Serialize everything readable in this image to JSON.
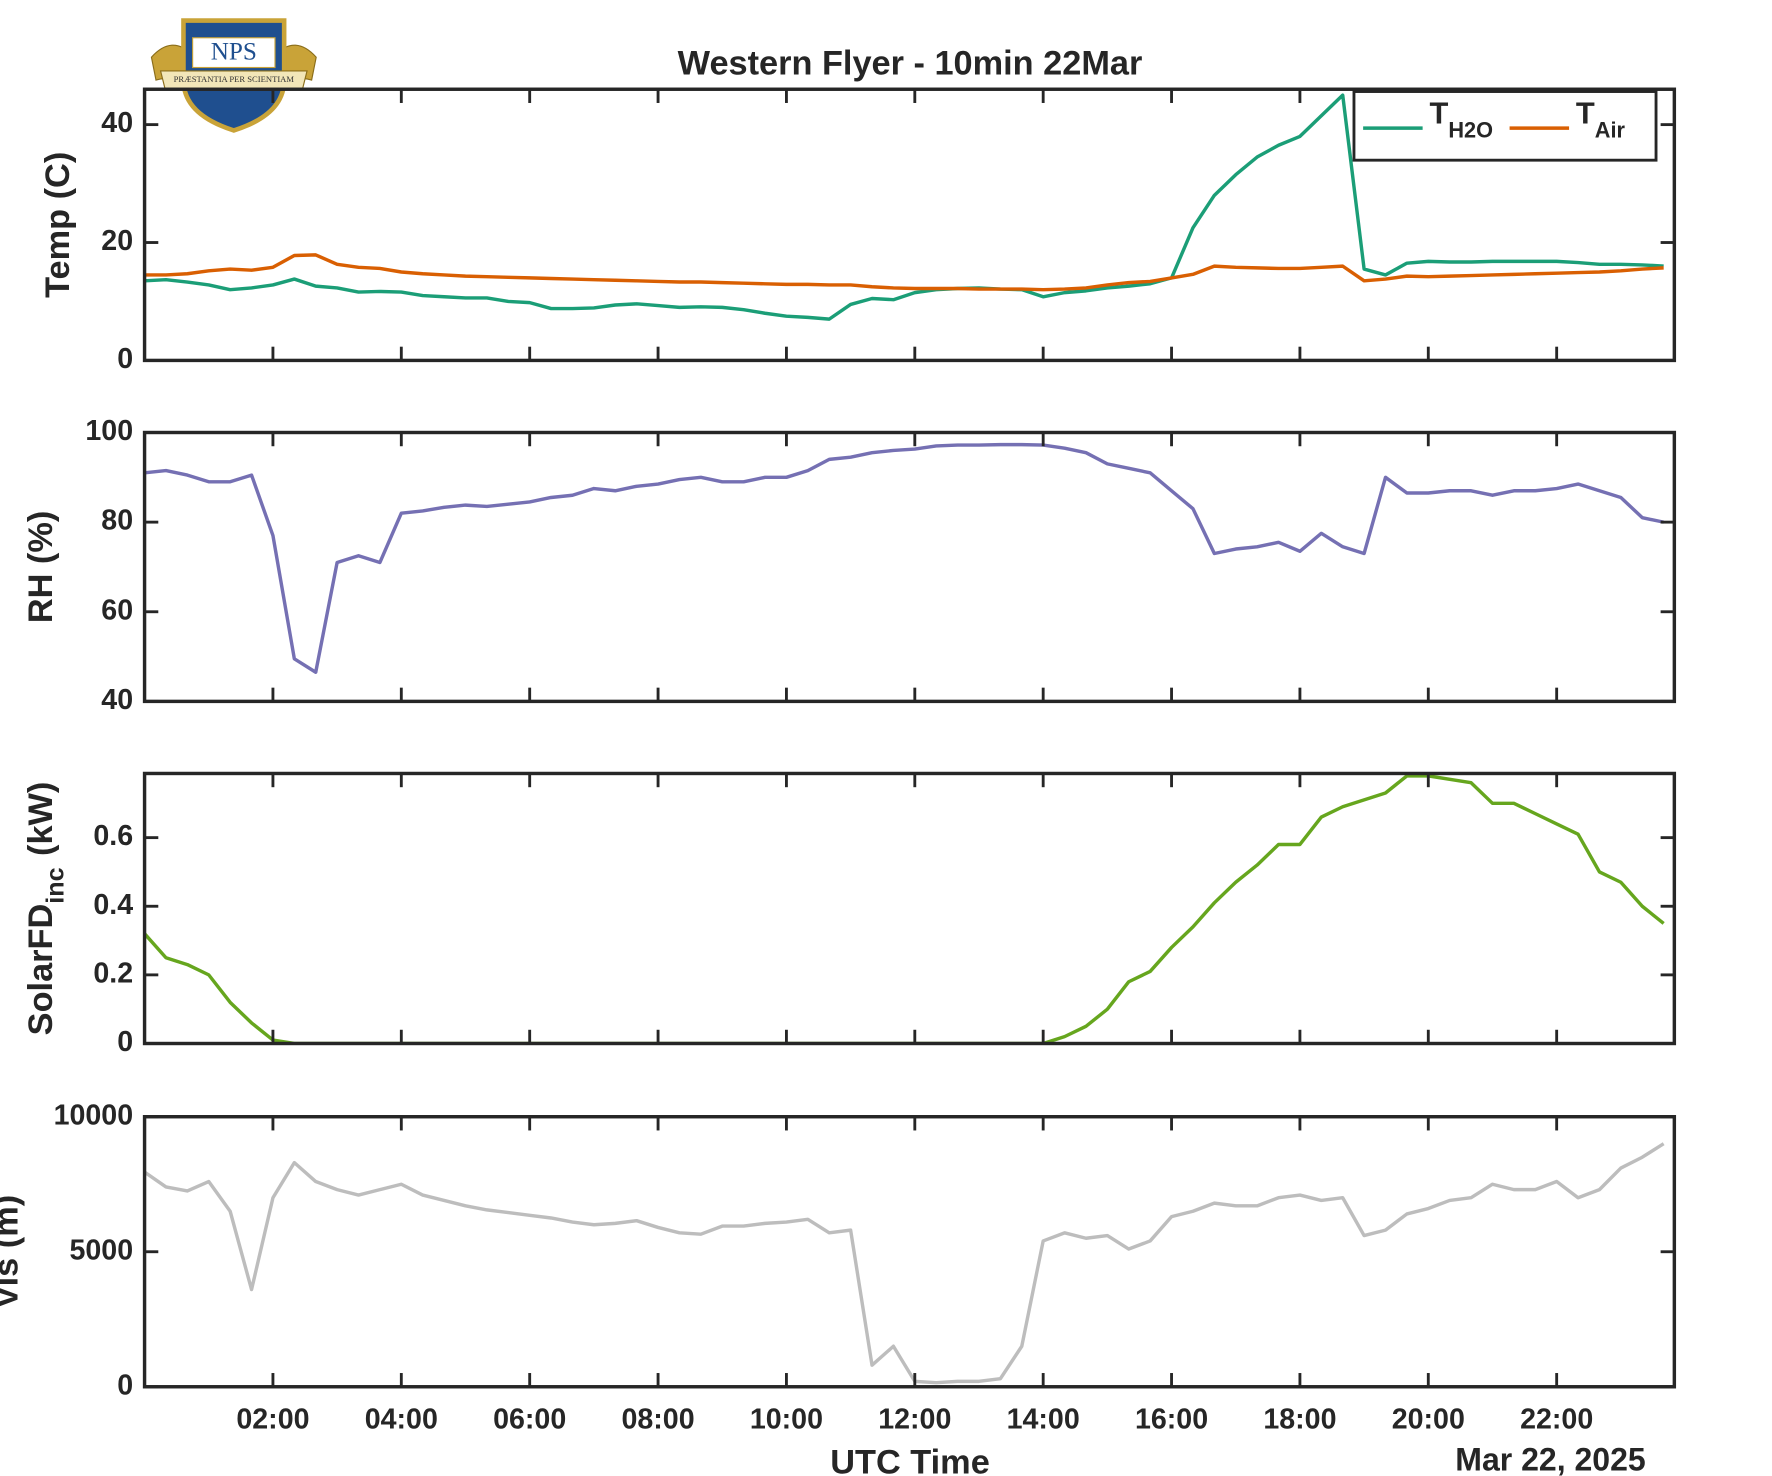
{
  "logo": {
    "text": "NPS",
    "motto": "PRÆSTANTIA PER SCIENTIAM"
  },
  "chart_data": {
    "type": "line",
    "title": "Western Flyer - 10min 22Mar",
    "xlabel": "UTC Time",
    "date_label": "Mar 22, 2025",
    "xlim": [
      0,
      1430
    ],
    "xticks": [
      {
        "value": 120,
        "label": "02:00"
      },
      {
        "value": 240,
        "label": "04:00"
      },
      {
        "value": 360,
        "label": "06:00"
      },
      {
        "value": 480,
        "label": "08:00"
      },
      {
        "value": 600,
        "label": "10:00"
      },
      {
        "value": 720,
        "label": "12:00"
      },
      {
        "value": 840,
        "label": "14:00"
      },
      {
        "value": 960,
        "label": "16:00"
      },
      {
        "value": 1080,
        "label": "18:00"
      },
      {
        "value": 1200,
        "label": "20:00"
      },
      {
        "value": 1320,
        "label": "22:00"
      }
    ],
    "x": [
      0,
      20,
      40,
      60,
      80,
      100,
      120,
      140,
      160,
      180,
      200,
      220,
      240,
      260,
      280,
      300,
      320,
      340,
      360,
      380,
      400,
      420,
      440,
      460,
      480,
      500,
      520,
      540,
      560,
      580,
      600,
      620,
      640,
      660,
      680,
      700,
      720,
      740,
      760,
      780,
      800,
      820,
      840,
      860,
      880,
      900,
      920,
      940,
      960,
      980,
      1000,
      1020,
      1040,
      1060,
      1080,
      1100,
      1120,
      1140,
      1160,
      1180,
      1200,
      1220,
      1240,
      1260,
      1280,
      1300,
      1320,
      1340,
      1360,
      1380,
      1400,
      1420
    ],
    "panels": [
      {
        "ylabel": "Temp (C)",
        "ylim": [
          0,
          46
        ],
        "yticks": [
          0,
          20,
          40
        ],
        "legend": "northeast",
        "series": [
          {
            "name": "T",
            "subscript": "H2O",
            "color": "#1b9e77",
            "values": [
              13.5,
              13.7,
              13.3,
              12.8,
              12,
              12.3,
              12.8,
              13.8,
              12.6,
              12.3,
              11.6,
              11.7,
              11.6,
              11.0,
              10.8,
              10.6,
              10.6,
              10.0,
              9.8,
              8.8,
              8.8,
              8.9,
              9.4,
              9.6,
              9.3,
              9.0,
              9.1,
              9.0,
              8.6,
              8.0,
              7.5,
              7.3,
              7.0,
              9.5,
              10.5,
              10.3,
              11.5,
              12.0,
              12.2,
              12.3,
              12.1,
              12.0,
              10.8,
              11.5,
              11.8,
              12.3,
              12.6,
              13.0,
              14.0,
              22.5,
              28,
              31.5,
              34.5,
              36.5,
              38,
              41.5,
              45,
              15.5,
              14.5,
              16.5,
              16.8,
              16.7,
              16.7,
              16.8,
              16.8,
              16.8,
              16.8,
              16.6,
              16.3,
              16.3,
              16.2,
              16.0
            ]
          },
          {
            "name": "T",
            "subscript": "Air",
            "color": "#d95f02",
            "values": [
              14.5,
              14.5,
              14.7,
              15.2,
              15.5,
              15.3,
              15.8,
              17.8,
              17.9,
              16.3,
              15.8,
              15.6,
              15.0,
              14.7,
              14.5,
              14.3,
              14.2,
              14.1,
              14.0,
              13.9,
              13.8,
              13.7,
              13.6,
              13.5,
              13.4,
              13.3,
              13.3,
              13.2,
              13.1,
              13.0,
              12.9,
              12.9,
              12.8,
              12.8,
              12.5,
              12.3,
              12.2,
              12.2,
              12.2,
              12.1,
              12.1,
              12.1,
              12.0,
              12.1,
              12.3,
              12.8,
              13.2,
              13.4,
              14.0,
              14.6,
              16.0,
              15.8,
              15.7,
              15.6,
              15.6,
              15.8,
              16.0,
              13.5,
              13.8,
              14.3,
              14.2,
              14.3,
              14.4,
              14.5,
              14.6,
              14.7,
              14.8,
              14.9,
              15.0,
              15.2,
              15.5,
              15.7
            ]
          }
        ]
      },
      {
        "ylabel": "RH (%)",
        "ylim": [
          40,
          100
        ],
        "yticks": [
          40,
          60,
          80,
          100
        ],
        "series": [
          {
            "color": "#7570b3",
            "values": [
              91,
              91.5,
              90.5,
              89,
              89,
              90.5,
              77,
              49.5,
              46.5,
              71,
              72.5,
              71,
              82,
              82.5,
              83.3,
              83.8,
              83.5,
              84,
              84.5,
              85.5,
              86,
              87.5,
              87,
              88,
              88.5,
              89.5,
              90,
              89,
              89,
              90,
              90,
              91.5,
              94,
              94.5,
              95.5,
              96,
              96.3,
              97,
              97.2,
              97.2,
              97.3,
              97.3,
              97.2,
              96.5,
              95.5,
              93,
              92,
              91,
              87,
              83,
              73,
              74,
              74.5,
              75.5,
              73.5,
              77.5,
              74.5,
              73,
              90,
              86.5,
              86.5,
              87,
              87,
              86,
              87,
              87,
              87.5,
              88.5,
              87,
              85.5,
              81,
              80
            ]
          }
        ]
      },
      {
        "ylabel": "SolarFD",
        "ylabel_sub": "inc",
        "ylabel_unit": "(kW)",
        "ylim": [
          0,
          0.787
        ],
        "yticks": [
          0,
          0.2,
          0.4,
          0.6
        ],
        "series": [
          {
            "color": "#66a61e",
            "values": [
              0.32,
              0.25,
              0.23,
              0.2,
              0.12,
              0.06,
              0.01,
              0,
              0,
              0,
              0,
              0,
              0,
              0,
              0,
              0,
              0,
              0,
              0,
              0,
              0,
              0,
              0,
              0,
              0,
              0,
              0,
              0,
              0,
              0,
              0,
              0,
              0,
              0,
              0,
              0,
              0,
              0,
              0,
              0,
              0,
              0,
              0,
              0.02,
              0.05,
              0.1,
              0.18,
              0.21,
              0.28,
              0.34,
              0.41,
              0.47,
              0.52,
              0.58,
              0.58,
              0.66,
              0.69,
              0.71,
              0.73,
              0.78,
              0.78,
              0.77,
              0.76,
              0.7,
              0.7,
              0.67,
              0.64,
              0.61,
              0.5,
              0.47,
              0.4,
              0.35
            ]
          }
        ]
      },
      {
        "ylabel": "Vis (m)",
        "ylim": [
          0,
          10000
        ],
        "yticks": [
          0,
          5000,
          10000
        ],
        "series": [
          {
            "color": "#bdbdbd",
            "values": [
              7950,
              7400,
              7250,
              7600,
              6500,
              3600,
              7000,
              8300,
              7600,
              7300,
              7100,
              7300,
              7500,
              7100,
              6900,
              6700,
              6550,
              6450,
              6350,
              6250,
              6100,
              6000,
              6050,
              6150,
              5900,
              5700,
              5650,
              5950,
              5950,
              6050,
              6100,
              6200,
              5700,
              5800,
              800,
              1500,
              200,
              150,
              200,
              200,
              300,
              1500,
              5400,
              5700,
              5500,
              5600,
              5100,
              5400,
              6300,
              6500,
              6800,
              6700,
              6700,
              7000,
              7100,
              6900,
              7000,
              5600,
              5800,
              6400,
              6600,
              6900,
              7000,
              7500,
              7300,
              7300,
              7600,
              7000,
              7300,
              8100,
              8500,
              9000
            ]
          }
        ]
      }
    ]
  }
}
